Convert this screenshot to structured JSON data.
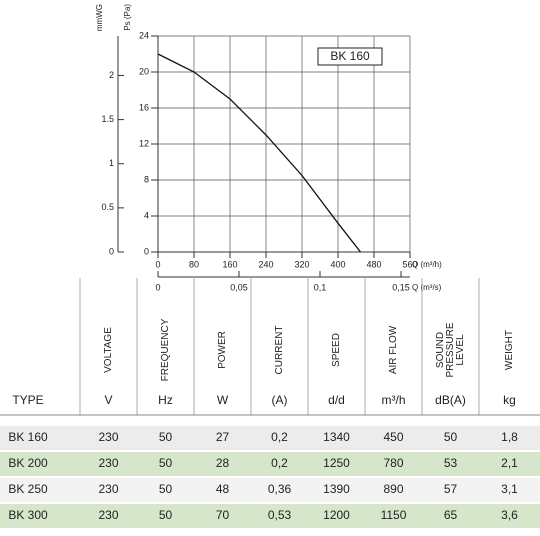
{
  "chart_data": {
    "type": "line",
    "x": [
      0,
      80,
      160,
      240,
      320,
      400,
      450
    ],
    "series": [
      {
        "name": "BK 160",
        "color": "#111111",
        "values": [
          22,
          20,
          17,
          13,
          8.5,
          3.2,
          0
        ]
      }
    ],
    "xlim": [
      0,
      560
    ],
    "xticks": [
      0,
      80,
      160,
      240,
      320,
      400,
      480,
      560
    ],
    "ylim": [
      0,
      24
    ],
    "yticks": [
      0,
      4,
      8,
      12,
      16,
      20,
      24
    ],
    "y2lim": [
      0,
      2.447
    ],
    "y2ticks": [
      0,
      0.5,
      1,
      1.5,
      2
    ],
    "x2lim": [
      0,
      0.15556
    ],
    "x2ticks": [
      0,
      {
        "value": 0.05,
        "label": "0,05"
      },
      {
        "value": 0.1,
        "label": "0,1"
      },
      {
        "value": 0.15,
        "label": "0,15"
      }
    ],
    "xlabel": "Q (m³/h)",
    "x2label": "Q (m³/s)",
    "ylabel": "Ps (Pa)",
    "y2label": "mmWG",
    "grid": true
  },
  "table": {
    "columns": [
      {
        "name": [],
        "unit": "TYPE"
      },
      {
        "name": [
          "VOLTAGE"
        ],
        "unit": "V"
      },
      {
        "name": [
          "FREQUENCY"
        ],
        "unit": "Hz"
      },
      {
        "name": [
          "POWER"
        ],
        "unit": "W"
      },
      {
        "name": [
          "CURRENT"
        ],
        "unit": "(A)"
      },
      {
        "name": [
          "SPEED"
        ],
        "unit": "d/d"
      },
      {
        "name": [
          "AIR FLOW"
        ],
        "unit": "m³/h"
      },
      {
        "name": [
          "SOUND",
          "PRESSURE",
          "LEVEL"
        ],
        "unit": "dB(A)"
      },
      {
        "name": [
          "WEIGHT"
        ],
        "unit": "kg"
      }
    ],
    "rows": [
      [
        "BK 160",
        "230",
        "50",
        "27",
        "0,2",
        "1340",
        "450",
        "50",
        "1,8"
      ],
      [
        "BK 200",
        "230",
        "50",
        "28",
        "0,2",
        "1250",
        "780",
        "53",
        "2,1"
      ],
      [
        "BK 250",
        "230",
        "50",
        "48",
        "0,36",
        "1390",
        "890",
        "57",
        "3,1"
      ],
      [
        "BK 300",
        "230",
        "50",
        "70",
        "0,53",
        "1200",
        "1150",
        "65",
        "3,6"
      ]
    ]
  }
}
